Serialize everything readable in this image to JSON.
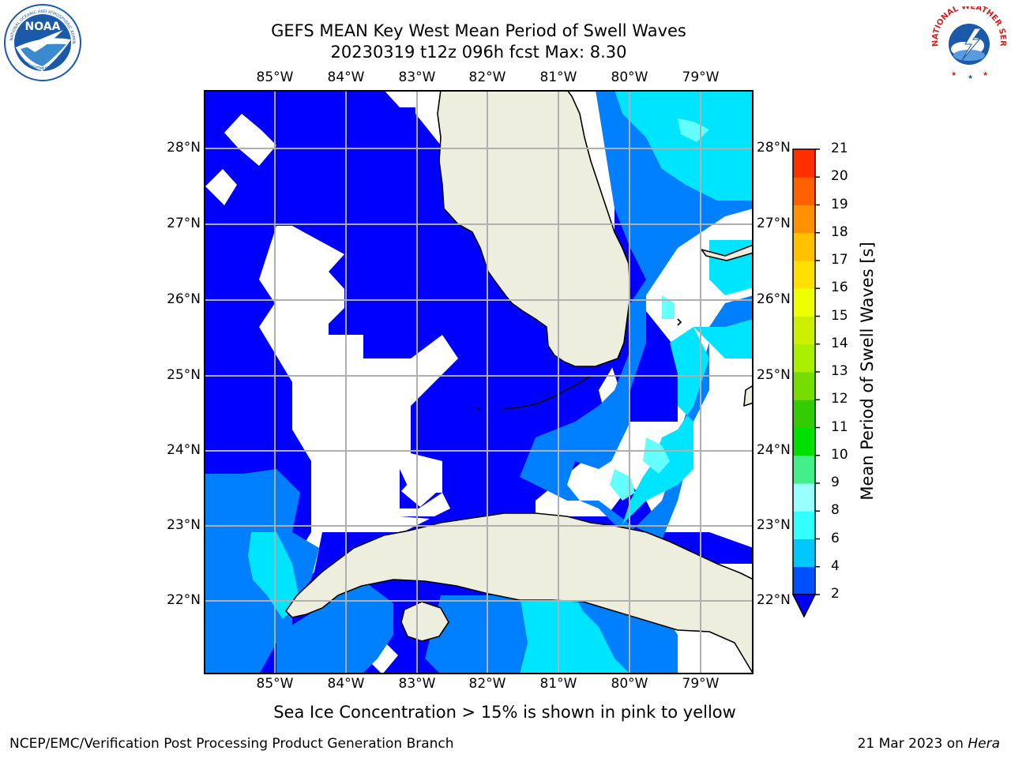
{
  "header": {
    "title_line1": "GEFS MEAN Key West Mean Period of Swell Waves",
    "title_line2": "20230319 t12z 096h fcst   Max: 8.30"
  },
  "logos": {
    "left": {
      "name": "NOAA",
      "ring_text": "NATIONAL OCEANIC AND ATMOSPHERIC ADMINISTRATION",
      "bottom_text": "U.S. DEPARTMENT OF COMMERCE",
      "color": "#1a5aa8"
    },
    "right": {
      "name": "NATIONAL WEATHER SERVICE",
      "color": "#d42020"
    }
  },
  "map": {
    "lon_labels": [
      "85°W",
      "84°W",
      "83°W",
      "82°W",
      "81°W",
      "80°W",
      "79°W"
    ],
    "lat_labels": [
      "28°N",
      "27°N",
      "26°N",
      "25°N",
      "24°N",
      "23°N",
      "22°N"
    ],
    "colors": {
      "land": "#eeeedf",
      "ocean_deep": "#0000ff",
      "ocean_mid": "#0080ff",
      "ocean_cyan": "#00e5ff",
      "ocean_lightcyan": "#44ffff",
      "ice_free": "#ffffff",
      "grid": "#b0b0b0"
    }
  },
  "colorbar": {
    "title": "Mean Period of Swell Waves [s]",
    "levels": [
      "2",
      "4",
      "6",
      "8",
      "9",
      "10",
      "11",
      "12",
      "13",
      "14",
      "15",
      "16",
      "17",
      "18",
      "19",
      "20",
      "21"
    ],
    "colors": [
      "#0050ff",
      "#00c8ff",
      "#33ffff",
      "#99ffff",
      "#44ee88",
      "#00e000",
      "#33cc00",
      "#77dd00",
      "#aaee00",
      "#ccf000",
      "#eeff00",
      "#ffe000",
      "#ffc000",
      "#ff9000",
      "#ff6000",
      "#ff3000"
    ],
    "under_color": "#0000ff"
  },
  "caption": "Sea Ice Concentration > 15% is shown in pink to yellow",
  "footer": {
    "left": "NCEP/EMC/Verification Post Processing Product Generation Branch",
    "right_date": "21 Mar 2023 on ",
    "right_host": "Hera"
  }
}
